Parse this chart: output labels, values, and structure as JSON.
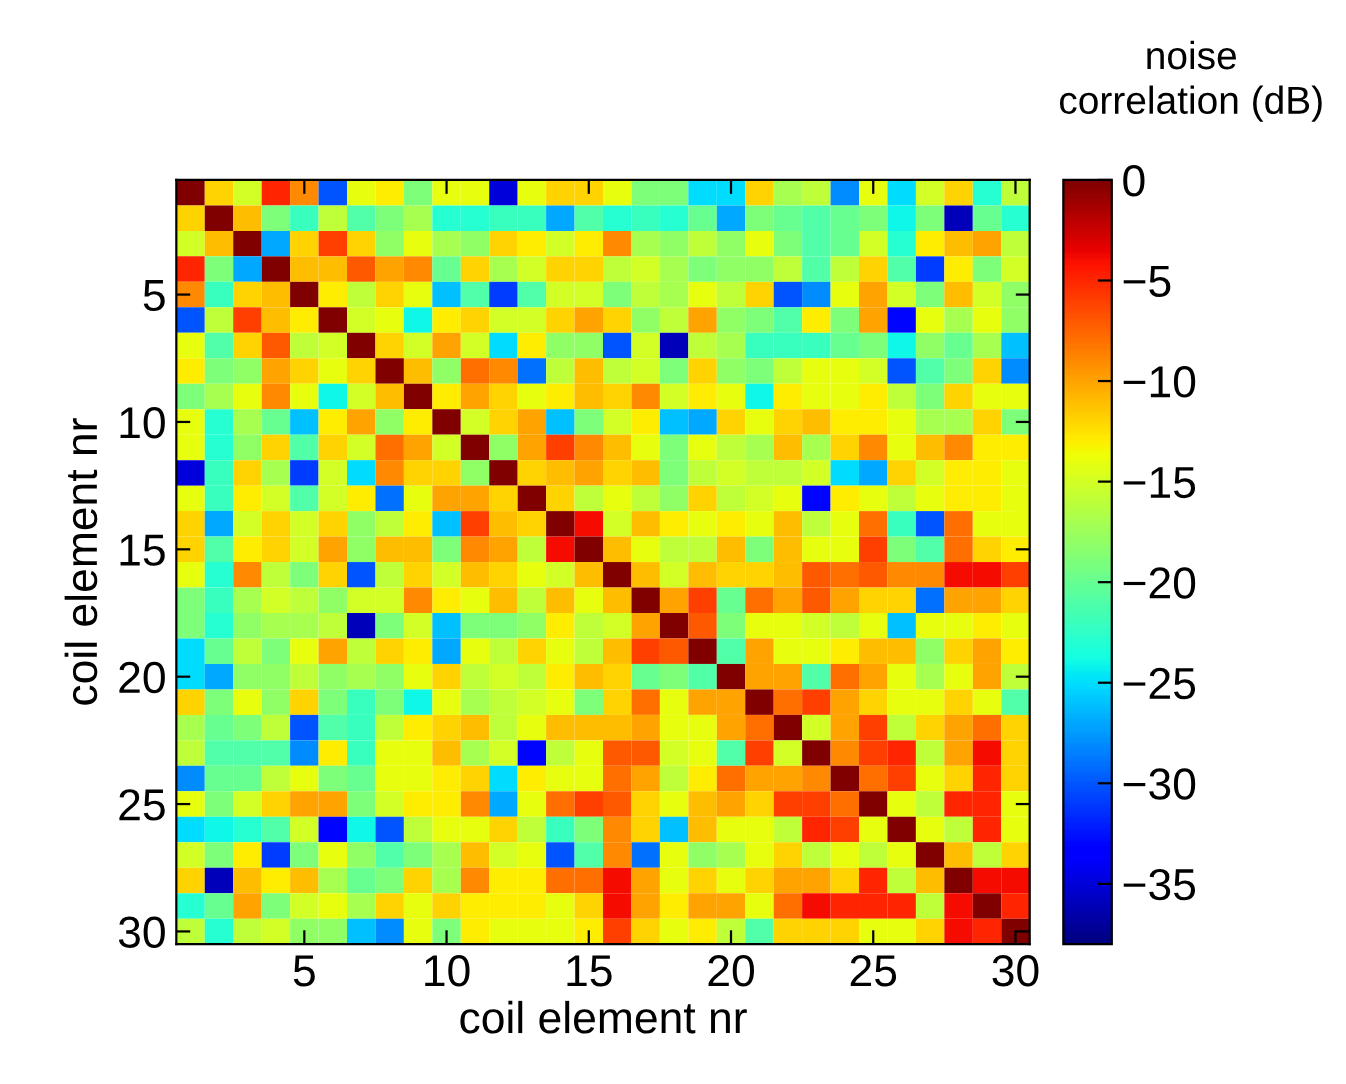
{
  "chart_data": {
    "type": "heatmap",
    "xlabel": "coil element nr",
    "ylabel": "coil element nr",
    "clabel": "noise\ncorrelation (dB)",
    "xlim": [
      0.5,
      30.5
    ],
    "ylim": [
      30.5,
      0.5
    ],
    "xticks": [
      5,
      10,
      15,
      20,
      25,
      30
    ],
    "yticks": [
      5,
      10,
      15,
      20,
      25,
      30
    ],
    "clim": [
      -38,
      0
    ],
    "cticks": [
      0,
      {
        "value": -5,
        "label": "−5"
      },
      {
        "value": -10,
        "label": "−10"
      },
      {
        "value": -15,
        "label": "−15"
      },
      {
        "value": -20,
        "label": "−20"
      },
      {
        "value": -25,
        "label": "−25"
      },
      {
        "value": -30,
        "label": "−30"
      },
      {
        "value": -35,
        "label": "−35"
      }
    ],
    "cells": [
      [
        0,
        -12,
        -15,
        -5,
        -9,
        -30,
        -14,
        -13,
        -19,
        -14,
        -14,
        -35,
        -14,
        -12,
        -12,
        -14,
        -19,
        -19,
        -25,
        -25,
        -12,
        -17,
        -16,
        -28,
        -14,
        -25,
        -15,
        -12,
        -23,
        -16
      ],
      [
        -12,
        0,
        -11,
        -19,
        -22,
        -16,
        -21,
        -19,
        -17,
        -23,
        -23,
        -22,
        -22,
        -27,
        -21,
        -23,
        -22,
        -23,
        -20,
        -27,
        -19,
        -20,
        -21,
        -20,
        -19,
        -24,
        -19,
        -36,
        -20,
        -23
      ],
      [
        -15,
        -11,
        0,
        -27,
        -12,
        -6,
        -12,
        -18,
        -14,
        -17,
        -18,
        -12,
        -13,
        -15,
        -13,
        -9,
        -17,
        -18,
        -16,
        -18,
        -14,
        -19,
        -21,
        -20,
        -15,
        -23,
        -13,
        -11,
        -10,
        -16
      ],
      [
        -5,
        -19,
        -27,
        0,
        -11,
        -11,
        -7,
        -10,
        -9,
        -20,
        -12,
        -17,
        -15,
        -12,
        -12,
        -16,
        -15,
        -17,
        -19,
        -18,
        -18,
        -16,
        -21,
        -16,
        -12,
        -21,
        -31,
        -13,
        -19,
        -15
      ],
      [
        -9,
        -22,
        -12,
        -11,
        0,
        -13,
        -16,
        -12,
        -14,
        -26,
        -21,
        -31,
        -21,
        -15,
        -15,
        -19,
        -16,
        -17,
        -14,
        -16,
        -12,
        -30,
        -28,
        -14,
        -10,
        -15,
        -19,
        -11,
        -15,
        -18
      ],
      [
        -30,
        -16,
        -6,
        -11,
        -13,
        0,
        -15,
        -14,
        -24,
        -13,
        -12,
        -15,
        -15,
        -12,
        -10,
        -12,
        -18,
        -16,
        -10,
        -18,
        -19,
        -21,
        -13,
        -19,
        -10,
        -33,
        -14,
        -17,
        -14,
        -18
      ],
      [
        -14,
        -21,
        -12,
        -7,
        -16,
        -15,
        0,
        -12,
        -15,
        -10,
        -15,
        -25,
        -13,
        -18,
        -18,
        -30,
        -15,
        -36,
        -16,
        -17,
        -22,
        -22,
        -22,
        -20,
        -19,
        -24,
        -18,
        -20,
        -17,
        -26
      ],
      [
        -13,
        -19,
        -18,
        -10,
        -12,
        -14,
        -12,
        0,
        -11,
        -18,
        -8,
        -9,
        -29,
        -16,
        -11,
        -16,
        -15,
        -19,
        -12,
        -18,
        -19,
        -16,
        -14,
        -14,
        -15,
        -30,
        -21,
        -19,
        -12,
        -28
      ],
      [
        -19,
        -17,
        -14,
        -9,
        -14,
        -24,
        -15,
        -11,
        0,
        -13,
        -10,
        -12,
        -14,
        -13,
        -11,
        -12,
        -9,
        -15,
        -13,
        -14,
        -24,
        -13,
        -14,
        -14,
        -13,
        -16,
        -19,
        -12,
        -14,
        -14
      ],
      [
        -14,
        -23,
        -17,
        -20,
        -26,
        -13,
        -10,
        -18,
        -13,
        0,
        -15,
        -12,
        -10,
        -26,
        -19,
        -15,
        -13,
        -26,
        -27,
        -12,
        -14,
        -12,
        -11,
        -13,
        -13,
        -14,
        -17,
        -17,
        -12,
        -19
      ],
      [
        -14,
        -23,
        -18,
        -12,
        -21,
        -12,
        -15,
        -8,
        -10,
        -15,
        0,
        -18,
        -10,
        -6,
        -9,
        -11,
        -14,
        -19,
        -14,
        -16,
        -17,
        -11,
        -17,
        -12,
        -9,
        -14,
        -11,
        -9,
        -13,
        -13
      ],
      [
        -35,
        -22,
        -12,
        -17,
        -31,
        -15,
        -25,
        -9,
        -12,
        -12,
        -18,
        0,
        -12,
        -11,
        -10,
        -12,
        -11,
        -19,
        -16,
        -15,
        -16,
        -16,
        -15,
        -25,
        -27,
        -12,
        -15,
        -13,
        -13,
        -14
      ],
      [
        -14,
        -22,
        -13,
        -15,
        -21,
        -15,
        -13,
        -29,
        -14,
        -10,
        -10,
        -12,
        0,
        -12,
        -16,
        -14,
        -16,
        -18,
        -12,
        -16,
        -15,
        -14,
        -33,
        -13,
        -14,
        -16,
        -14,
        -13,
        -13,
        -14
      ],
      [
        -12,
        -27,
        -15,
        -12,
        -15,
        -12,
        -18,
        -16,
        -13,
        -26,
        -6,
        -11,
        -12,
        0,
        -4,
        -15,
        -11,
        -13,
        -14,
        -13,
        -14,
        -11,
        -16,
        -14,
        -8,
        -22,
        -30,
        -8,
        -14,
        -14
      ],
      [
        -12,
        -21,
        -13,
        -12,
        -15,
        -10,
        -18,
        -11,
        -11,
        -19,
        -9,
        -10,
        -16,
        -4,
        0,
        -11,
        -14,
        -16,
        -16,
        -11,
        -19,
        -11,
        -14,
        -14,
        -6,
        -19,
        -21,
        -8,
        -12,
        -13
      ],
      [
        -14,
        -23,
        -9,
        -16,
        -19,
        -12,
        -30,
        -16,
        -12,
        -15,
        -11,
        -12,
        -14,
        -15,
        -11,
        0,
        -11,
        -15,
        -11,
        -12,
        -12,
        -11,
        -7,
        -8,
        -7,
        -9,
        -9,
        -4,
        -4,
        -6
      ],
      [
        -19,
        -22,
        -17,
        -15,
        -16,
        -18,
        -15,
        -15,
        -9,
        -13,
        -14,
        -11,
        -16,
        -11,
        -14,
        -11,
        0,
        -10,
        -6,
        -20,
        -8,
        -10,
        -7,
        -10,
        -12,
        -12,
        -29,
        -10,
        -10,
        -12
      ],
      [
        -19,
        -23,
        -18,
        -17,
        -17,
        -16,
        -36,
        -19,
        -15,
        -26,
        -19,
        -19,
        -18,
        -13,
        -16,
        -15,
        -10,
        0,
        -7,
        -19,
        -14,
        -14,
        -15,
        -16,
        -14,
        -26,
        -14,
        -14,
        -13,
        -14
      ],
      [
        -25,
        -20,
        -16,
        -19,
        -14,
        -10,
        -16,
        -12,
        -13,
        -27,
        -14,
        -16,
        -12,
        -14,
        -16,
        -11,
        -6,
        -7,
        0,
        -21,
        -10,
        -14,
        -14,
        -13,
        -11,
        -11,
        -18,
        -12,
        -10,
        -13
      ],
      [
        -25,
        -27,
        -18,
        -18,
        -16,
        -18,
        -17,
        -18,
        -14,
        -12,
        -16,
        -15,
        -16,
        -13,
        -11,
        -12,
        -20,
        -19,
        -21,
        0,
        -10,
        -10,
        -21,
        -8,
        -10,
        -14,
        -17,
        -14,
        -10,
        -16
      ],
      [
        -12,
        -19,
        -14,
        -18,
        -12,
        -19,
        -22,
        -19,
        -24,
        -14,
        -17,
        -16,
        -15,
        -14,
        -19,
        -12,
        -8,
        -14,
        -10,
        -10,
        0,
        -8,
        -6,
        -10,
        -12,
        -14,
        -14,
        -12,
        -14,
        -21
      ],
      [
        -17,
        -20,
        -19,
        -16,
        -30,
        -21,
        -22,
        -16,
        -13,
        -12,
        -11,
        -16,
        -14,
        -11,
        -11,
        -11,
        -10,
        -14,
        -14,
        -10,
        -8,
        0,
        -15,
        -10,
        -6,
        -16,
        -12,
        -10,
        -8,
        -12
      ],
      [
        -16,
        -21,
        -21,
        -21,
        -28,
        -13,
        -22,
        -14,
        -14,
        -11,
        -17,
        -15,
        -33,
        -16,
        -14,
        -7,
        -7,
        -15,
        -14,
        -21,
        -6,
        -15,
        0,
        -9,
        -6,
        -5,
        -16,
        -10,
        -4,
        -12
      ],
      [
        -28,
        -20,
        -20,
        -16,
        -14,
        -19,
        -20,
        -14,
        -14,
        -13,
        -12,
        -25,
        -13,
        -14,
        -14,
        -8,
        -10,
        -16,
        -13,
        -8,
        -10,
        -10,
        -9,
        0,
        -8,
        -6,
        -14,
        -12,
        -5,
        -12
      ],
      [
        -14,
        -19,
        -15,
        -12,
        -10,
        -10,
        -19,
        -15,
        -13,
        -13,
        -9,
        -27,
        -14,
        -8,
        -6,
        -7,
        -12,
        -14,
        -11,
        -10,
        -12,
        -6,
        -6,
        -8,
        0,
        -14,
        -16,
        -5,
        -5,
        -14
      ],
      [
        -25,
        -24,
        -23,
        -21,
        -15,
        -33,
        -24,
        -30,
        -16,
        -14,
        -14,
        -12,
        -16,
        -22,
        -19,
        -9,
        -12,
        -26,
        -11,
        -14,
        -14,
        -16,
        -5,
        -6,
        -14,
        0,
        -14,
        -16,
        -5,
        -14
      ],
      [
        -15,
        -19,
        -13,
        -31,
        -19,
        -14,
        -18,
        -21,
        -19,
        -17,
        -11,
        -15,
        -14,
        -30,
        -21,
        -9,
        -29,
        -14,
        -18,
        -17,
        -14,
        -12,
        -16,
        -14,
        -16,
        -14,
        0,
        -11,
        -16,
        -12
      ],
      [
        -12,
        -36,
        -11,
        -13,
        -11,
        -17,
        -20,
        -19,
        -12,
        -17,
        -9,
        -13,
        -13,
        -8,
        -8,
        -4,
        -10,
        -14,
        -12,
        -14,
        -12,
        -10,
        -10,
        -12,
        -5,
        -16,
        -11,
        0,
        -4,
        -4
      ],
      [
        -23,
        -20,
        -10,
        -19,
        -15,
        -14,
        -17,
        -12,
        -14,
        -12,
        -13,
        -13,
        -13,
        -14,
        -12,
        -4,
        -10,
        -13,
        -10,
        -10,
        -14,
        -8,
        -4,
        -5,
        -5,
        -5,
        -16,
        -4,
        0,
        -5
      ],
      [
        -16,
        -23,
        -16,
        -15,
        -18,
        -18,
        -26,
        -28,
        -14,
        -19,
        -13,
        -14,
        -14,
        -14,
        -13,
        -6,
        -12,
        -14,
        -13,
        -16,
        -21,
        -12,
        -12,
        -12,
        -14,
        -14,
        -12,
        -4,
        -5,
        0
      ]
    ]
  }
}
